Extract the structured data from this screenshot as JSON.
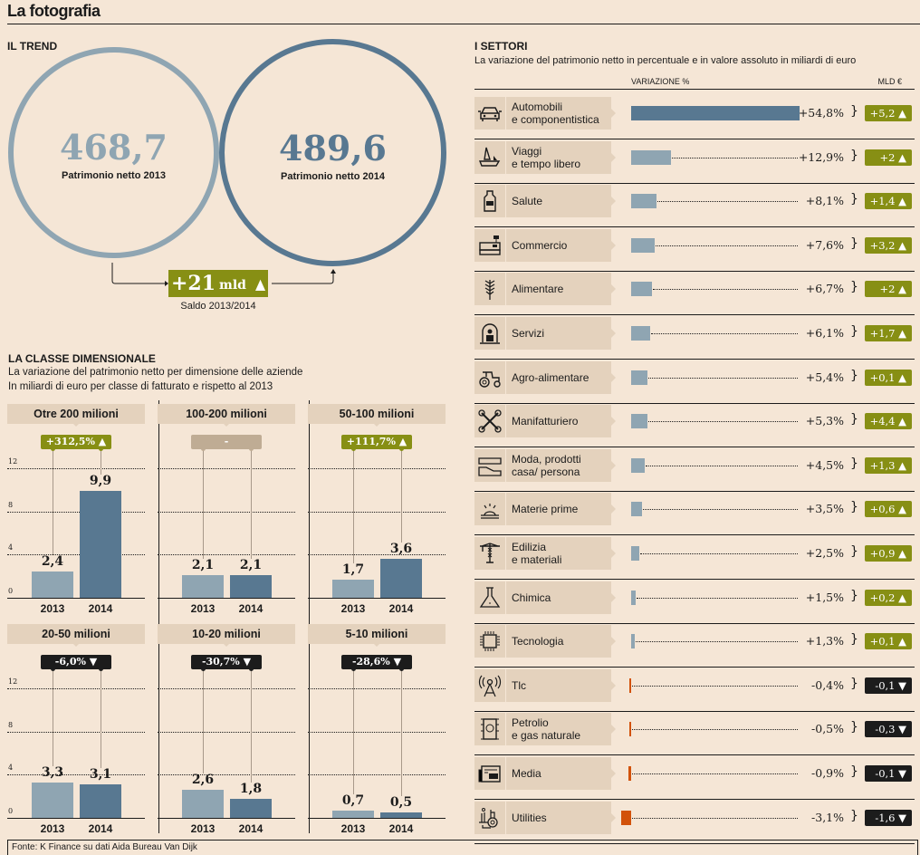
{
  "title": "La fotografia",
  "colors": {
    "background": "#f5e6d6",
    "light_blue": "#8fa5b2",
    "dark_blue": "#587891",
    "positive_green": "#878f14",
    "negative_black": "#1c1c1c",
    "negative_orange": "#d2520b",
    "neutral_tan": "#bfac94",
    "label_bg": "#e4d2bd"
  },
  "trend": {
    "heading": "IL TREND",
    "circle_2013": {
      "value": "468,7",
      "label": "Patrimonio netto 2013"
    },
    "circle_2014": {
      "value": "489,6",
      "label": "Patrimonio netto 2014"
    },
    "saldo": {
      "value": "+21",
      "unit": "mld",
      "arrow": "▲",
      "label": "Saldo 2013/2014"
    }
  },
  "classe": {
    "heading": "LA CLASSE DIMENSIONALE",
    "subtitle1": "La variazione del patrimonio netto per dimensione delle aziende",
    "subtitle2": "In miliardi di euro per classe di fatturato e rispetto al 2013"
  },
  "settori": {
    "heading": "I SETTORI",
    "subtitle": "La variazione del patrimonio netto in percentuale e in valore assoluto in miliardi di euro",
    "col_variazione": "VARIAZIONE %",
    "col_mld": "MLD €"
  },
  "source": "Fonte: K Finance su dati Aida Bureau Van Dijk",
  "chart_data": [
    {
      "type": "bar",
      "title": "La classe dimensionale",
      "ylabel": "Miliardi di euro",
      "ylim": [
        0,
        12
      ],
      "yticks": [
        0,
        4,
        8,
        12
      ],
      "categories": [
        "2013",
        "2014"
      ],
      "panels": [
        {
          "name": "Otre 200 milioni",
          "values": [
            2.4,
            9.9
          ],
          "labels": [
            "2,4",
            "9,9"
          ],
          "change": "+312,5%",
          "direction": "up"
        },
        {
          "name": "100-200 milioni",
          "values": [
            2.1,
            2.1
          ],
          "labels": [
            "2,1",
            "2,1"
          ],
          "change": "-",
          "direction": "none"
        },
        {
          "name": "50-100 milioni",
          "values": [
            1.7,
            3.6
          ],
          "labels": [
            "1,7",
            "3,6"
          ],
          "change": "+111,7%",
          "direction": "up"
        },
        {
          "name": "20-50 milioni",
          "values": [
            3.3,
            3.1
          ],
          "labels": [
            "3,3",
            "3,1"
          ],
          "change": "-6,0%",
          "direction": "down"
        },
        {
          "name": "10-20 milioni",
          "values": [
            2.6,
            1.8
          ],
          "labels": [
            "2,6",
            "1,8"
          ],
          "change": "-30,7%",
          "direction": "down"
        },
        {
          "name": "5-10 milioni",
          "values": [
            0.7,
            0.5
          ],
          "labels": [
            "0,7",
            "0,5"
          ],
          "change": "-28,6%",
          "direction": "down"
        }
      ]
    },
    {
      "type": "bar",
      "orientation": "horizontal",
      "title": "I settori",
      "xlabel": "Variazione %",
      "rows": [
        {
          "sector": "Automobili\ne componentistica",
          "icon": "car-icon",
          "pct": 54.8,
          "pct_label": "+54,8%",
          "mld": "+5,2",
          "direction": "up"
        },
        {
          "sector": "Viaggi\ne tempo libero",
          "icon": "sailboat-icon",
          "pct": 12.9,
          "pct_label": "+12,9%",
          "mld": "+2",
          "direction": "up"
        },
        {
          "sector": "Salute",
          "icon": "medicine-bottle-icon",
          "pct": 8.1,
          "pct_label": "+8,1%",
          "mld": "+1,4",
          "direction": "up"
        },
        {
          "sector": "Commercio",
          "icon": "cash-register-icon",
          "pct": 7.6,
          "pct_label": "+7,6%",
          "mld": "+3,2",
          "direction": "up"
        },
        {
          "sector": "Alimentare",
          "icon": "wheat-icon",
          "pct": 6.7,
          "pct_label": "+6,7%",
          "mld": "+2",
          "direction": "up"
        },
        {
          "sector": "Servizi",
          "icon": "service-desk-icon",
          "pct": 6.1,
          "pct_label": "+6,1%",
          "mld": "+1,7",
          "direction": "up"
        },
        {
          "sector": "Agro-alimentare",
          "icon": "tractor-icon",
          "pct": 5.4,
          "pct_label": "+5,4%",
          "mld": "+0,1",
          "direction": "up"
        },
        {
          "sector": "Manifatturiero",
          "icon": "wrenches-icon",
          "pct": 5.3,
          "pct_label": "+5,3%",
          "mld": "+4,4",
          "direction": "up"
        },
        {
          "sector": "Moda, prodotti\ncasa/ persona",
          "icon": "shoe-icon",
          "pct": 4.5,
          "pct_label": "+4,5%",
          "mld": "+1,3",
          "direction": "up"
        },
        {
          "sector": "Materie prime",
          "icon": "raw-material-icon",
          "pct": 3.5,
          "pct_label": "+3,5%",
          "mld": "+0,6",
          "direction": "up"
        },
        {
          "sector": "Edilizia\ne materiali",
          "icon": "crane-icon",
          "pct": 2.5,
          "pct_label": "+2,5%",
          "mld": "+0,9",
          "direction": "up"
        },
        {
          "sector": "Chimica",
          "icon": "flask-icon",
          "pct": 1.5,
          "pct_label": "+1,5%",
          "mld": "+0,2",
          "direction": "up"
        },
        {
          "sector": "Tecnologia",
          "icon": "chip-icon",
          "pct": 1.3,
          "pct_label": "+1,3%",
          "mld": "+0,1",
          "direction": "up"
        },
        {
          "sector": "Tlc",
          "icon": "antenna-icon",
          "pct": -0.4,
          "pct_label": "-0,4%",
          "mld": "-0,1",
          "direction": "down"
        },
        {
          "sector": "Petrolio\ne gas naturale",
          "icon": "oil-barrel-icon",
          "pct": -0.5,
          "pct_label": "-0,5%",
          "mld": "-0,3",
          "direction": "down"
        },
        {
          "sector": "Media",
          "icon": "newspaper-icon",
          "pct": -0.9,
          "pct_label": "-0,9%",
          "mld": "-0,1",
          "direction": "down"
        },
        {
          "sector": "Utilities",
          "icon": "utilities-icon",
          "pct": -3.1,
          "pct_label": "-3,1%",
          "mld": "-1,6",
          "direction": "down"
        }
      ]
    }
  ]
}
